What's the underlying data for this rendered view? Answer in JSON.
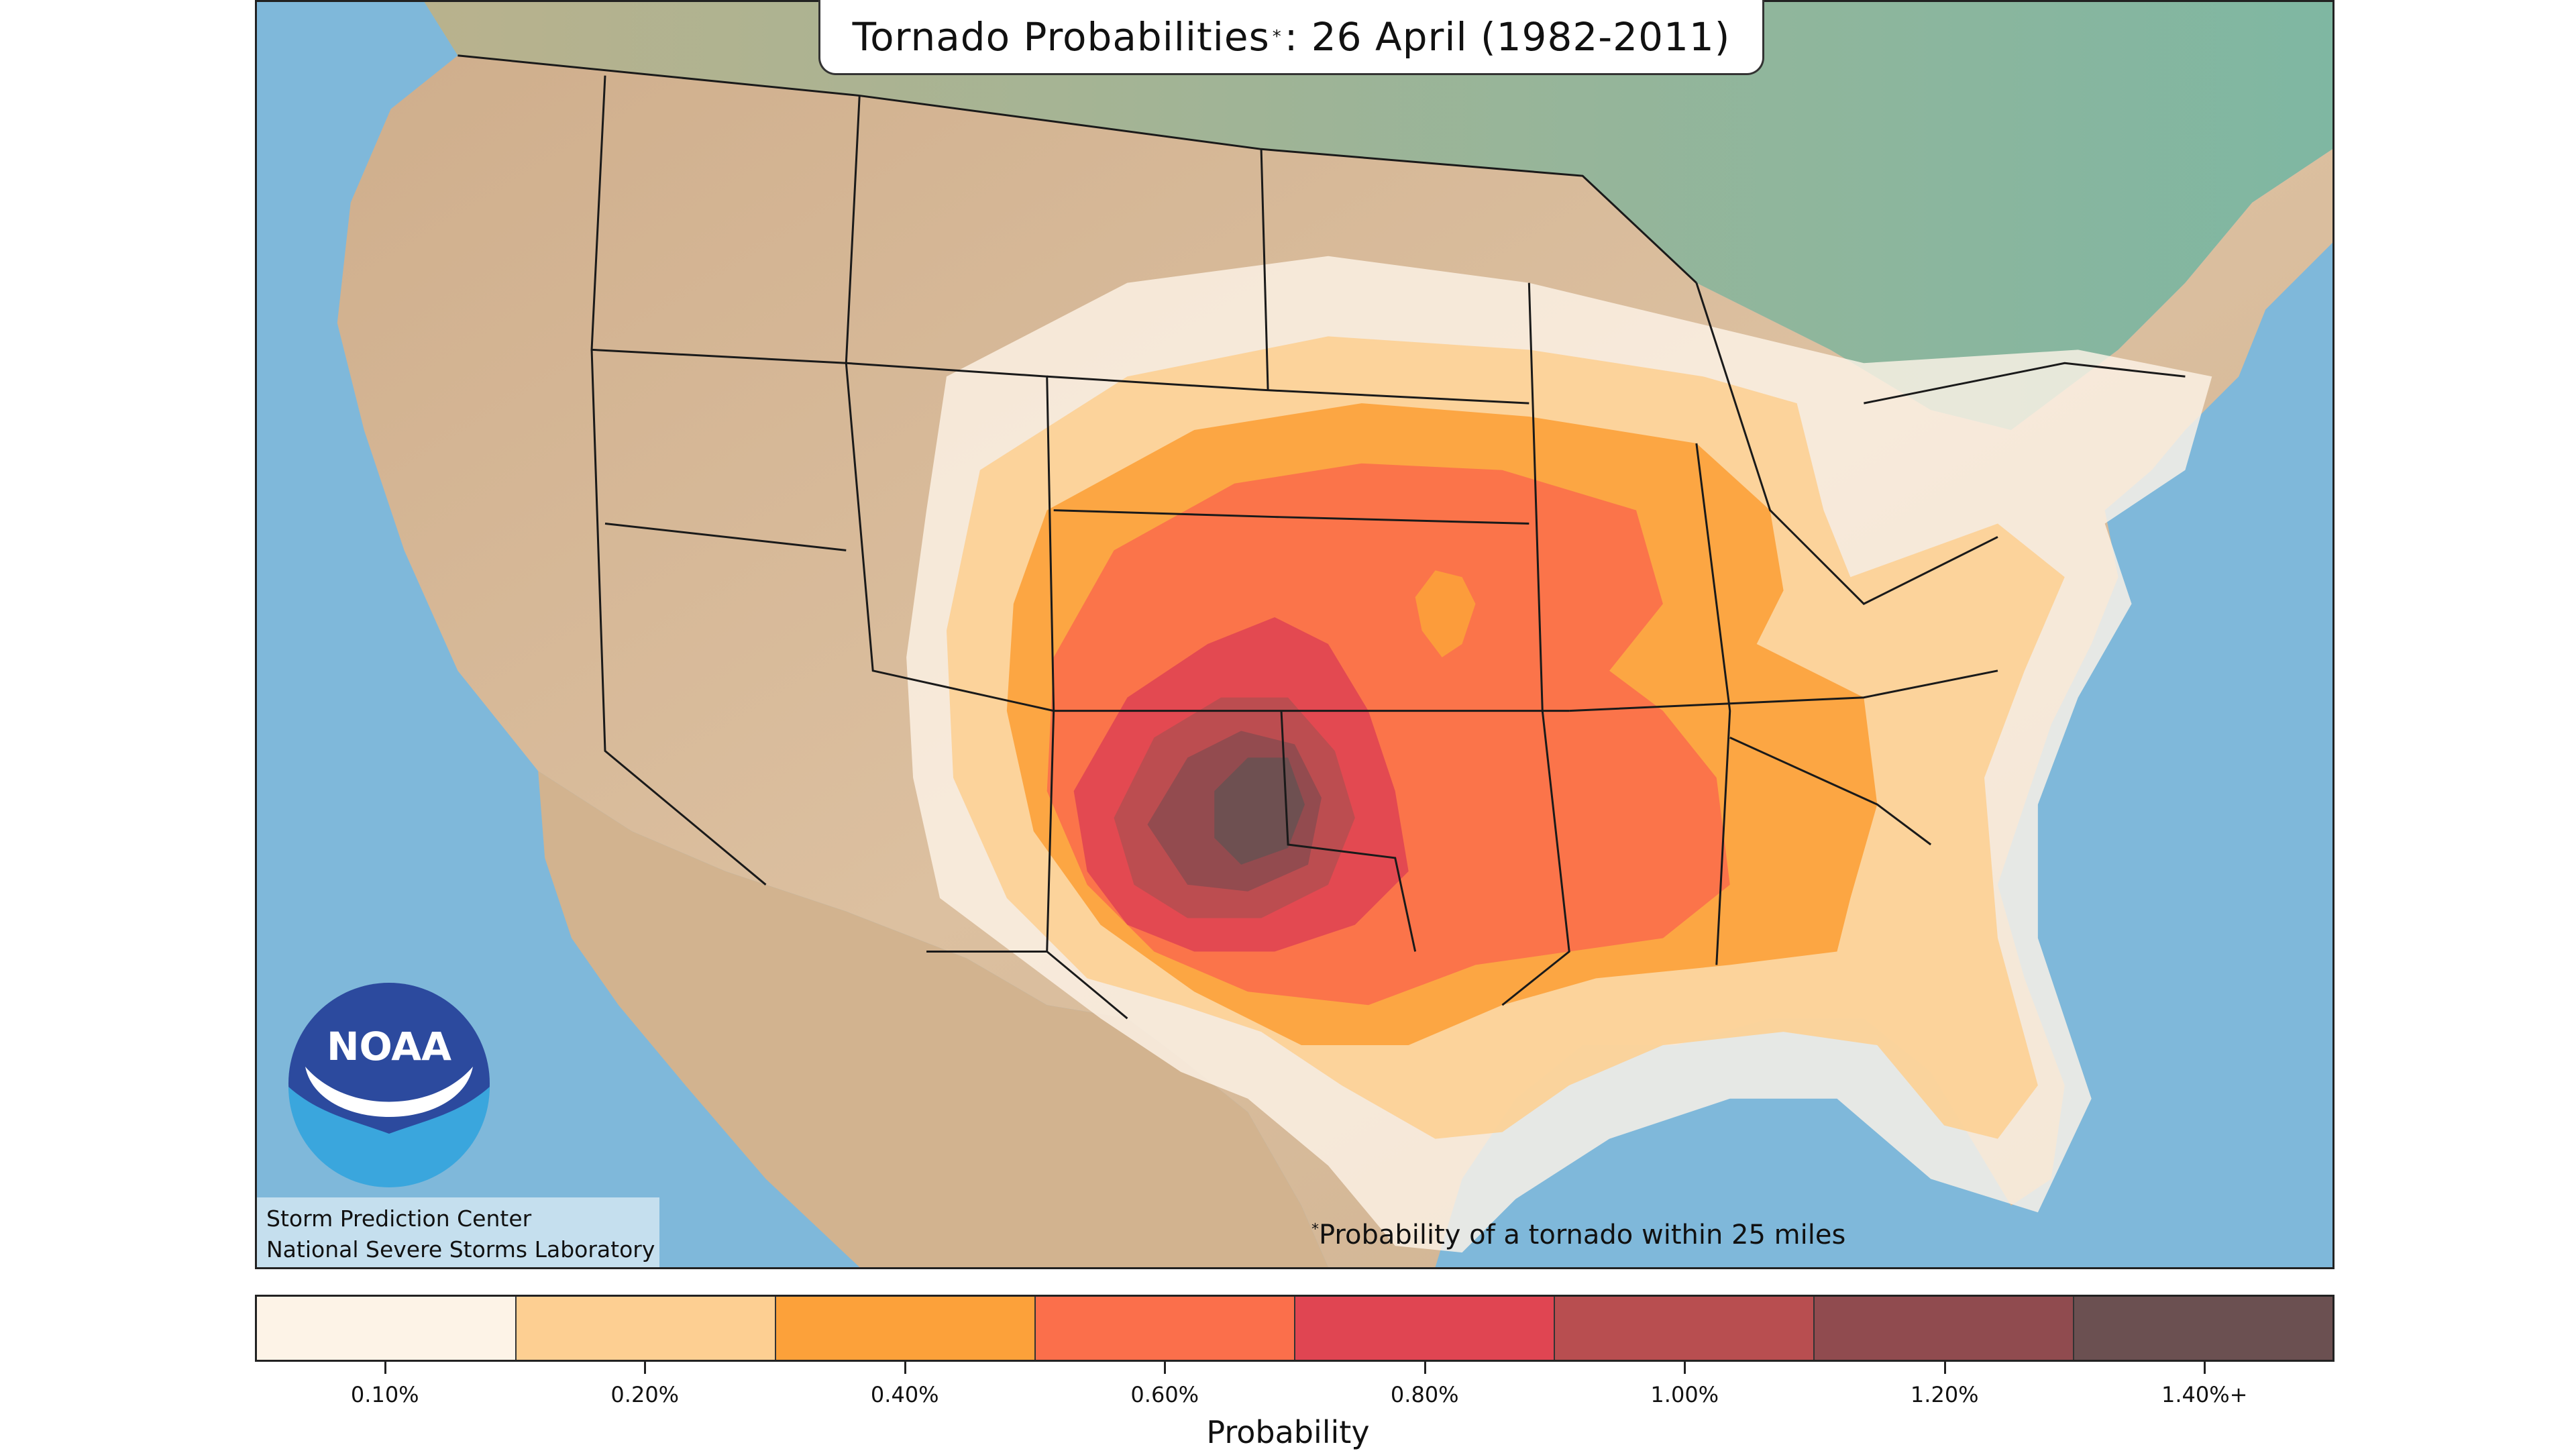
{
  "title": {
    "main": "Tornado Probabilities",
    "star": "*",
    "rest": ": 26 April (1982-2011)"
  },
  "footnote": {
    "star": "*",
    "text": "Probability of a tornado within 25 miles"
  },
  "credits": {
    "line1": "Storm Prediction Center",
    "line2": "National Severe Storms Laboratory"
  },
  "logo": {
    "text": "NOAA",
    "icon": "noaa-logo-icon"
  },
  "legend": {
    "axis_label": "Probability",
    "bins": [
      {
        "label": "0.10%",
        "color": "#fdf3e7"
      },
      {
        "label": "0.20%",
        "color": "#fdcf92"
      },
      {
        "label": "0.40%",
        "color": "#fca13a"
      },
      {
        "label": "0.60%",
        "color": "#fb6f4b"
      },
      {
        "label": "0.80%",
        "color": "#e04552"
      },
      {
        "label": "1.00%",
        "color": "#b84e50"
      },
      {
        "label": "1.20%",
        "color": "#904b4f"
      },
      {
        "label": "1.40%+",
        "color": "#6b5051"
      }
    ]
  },
  "colors": {
    "ocean": "#7fb8da",
    "land": "#d9b896",
    "canada": "#8fbfa8",
    "border": "#1a1a1a"
  }
}
